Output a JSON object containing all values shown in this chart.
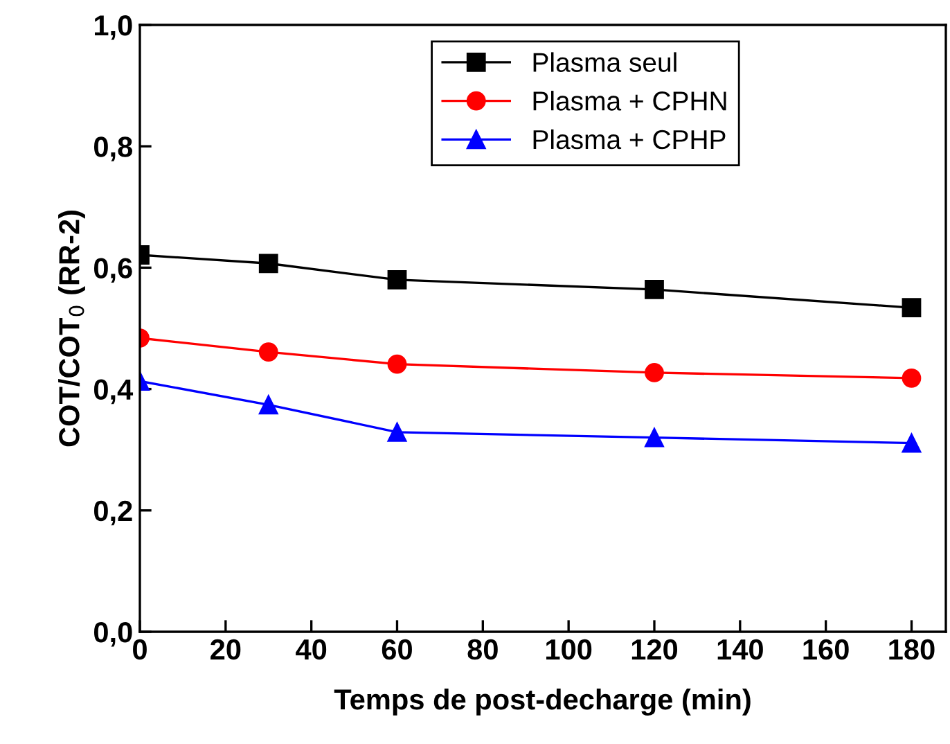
{
  "chart_data": {
    "type": "line",
    "xlabel": "Temps de post-decharge (min)",
    "ylabel": "COT/COT$_{0}$ (RR-2)",
    "x": [
      0,
      30,
      60,
      120,
      180
    ],
    "series": [
      {
        "name": "Plasma seul",
        "color": "#000000",
        "marker": "square",
        "values": [
          0.621,
          0.607,
          0.58,
          0.564,
          0.534
        ]
      },
      {
        "name": "Plasma + CPHN",
        "color": "#ff0000",
        "marker": "circle",
        "values": [
          0.484,
          0.461,
          0.441,
          0.427,
          0.418
        ]
      },
      {
        "name": "Plasma + CPHP",
        "color": "#0000ff",
        "marker": "triangle",
        "values": [
          0.413,
          0.374,
          0.329,
          0.32,
          0.311
        ]
      }
    ],
    "xlim": [
      0,
      188
    ],
    "xticks": [
      0,
      20,
      40,
      60,
      80,
      100,
      120,
      140,
      160,
      180
    ],
    "ylim": [
      0,
      1.0
    ],
    "yticks": [
      {
        "value": 0,
        "label": "0,0"
      },
      {
        "value": 0.2,
        "label": "0,2"
      },
      {
        "value": 0.4,
        "label": "0,4"
      },
      {
        "value": 0.6,
        "label": "0,6"
      },
      {
        "value": 0.8,
        "label": "0,8"
      },
      {
        "value": 1.0,
        "label": "1,0"
      }
    ],
    "grid": false,
    "legend": "top right",
    "line_style": "solid"
  }
}
